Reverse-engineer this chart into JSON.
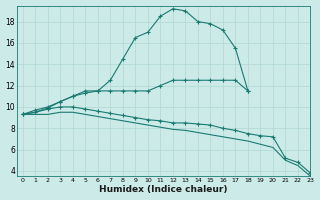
{
  "xlabel": "Humidex (Indice chaleur)",
  "ylabel": "",
  "background_color": "#cceae7",
  "line_color": "#1a7a72",
  "grid_color": "#b0d8d4",
  "xlim": [
    -0.5,
    23
  ],
  "ylim": [
    3.5,
    19.5
  ],
  "xticks": [
    0,
    1,
    2,
    3,
    4,
    5,
    6,
    7,
    8,
    9,
    10,
    11,
    12,
    13,
    14,
    15,
    16,
    17,
    18,
    19,
    20,
    21,
    22,
    23
  ],
  "yticks": [
    4,
    6,
    8,
    10,
    12,
    14,
    16,
    18
  ],
  "lines": [
    {
      "x": [
        0,
        1,
        2,
        3,
        4,
        5,
        6,
        7,
        8,
        9,
        10,
        11,
        12,
        13,
        14,
        15,
        16,
        17,
        18
      ],
      "y": [
        9.3,
        9.7,
        10.0,
        10.5,
        11.0,
        11.5,
        11.5,
        12.5,
        14.5,
        16.5,
        17.0,
        18.5,
        19.2,
        19.0,
        18.0,
        17.8,
        17.2,
        15.5,
        11.5
      ],
      "marker": true,
      "markersize": 2.5
    },
    {
      "x": [
        0,
        1,
        2,
        3,
        4,
        5,
        6,
        7,
        8,
        9,
        10,
        11,
        12,
        13,
        14,
        15,
        16,
        17,
        18
      ],
      "y": [
        9.3,
        9.5,
        9.9,
        10.5,
        11.0,
        11.3,
        11.5,
        11.5,
        11.5,
        11.5,
        11.5,
        12.0,
        12.5,
        12.5,
        12.5,
        12.5,
        12.5,
        12.5,
        11.5
      ],
      "marker": true,
      "markersize": 2.5
    },
    {
      "x": [
        0,
        1,
        2,
        3,
        4,
        5,
        6,
        7,
        8,
        9,
        10,
        11,
        12,
        13,
        14,
        15,
        16,
        17,
        18,
        19,
        20,
        21,
        22,
        23
      ],
      "y": [
        9.3,
        9.5,
        9.8,
        10.0,
        10.0,
        9.8,
        9.6,
        9.4,
        9.2,
        9.0,
        8.8,
        8.7,
        8.5,
        8.5,
        8.4,
        8.3,
        8.0,
        7.8,
        7.5,
        7.3,
        7.2,
        5.2,
        4.8,
        3.8
      ],
      "marker": true,
      "markersize": 2.5
    },
    {
      "x": [
        0,
        1,
        2,
        3,
        4,
        5,
        6,
        7,
        8,
        9,
        10,
        11,
        12,
        13,
        14,
        15,
        16,
        17,
        18,
        19,
        20,
        21,
        22,
        23
      ],
      "y": [
        9.3,
        9.3,
        9.3,
        9.5,
        9.5,
        9.3,
        9.1,
        8.9,
        8.7,
        8.5,
        8.3,
        8.1,
        7.9,
        7.8,
        7.6,
        7.4,
        7.2,
        7.0,
        6.8,
        6.5,
        6.2,
        5.0,
        4.5,
        3.5
      ],
      "marker": false,
      "markersize": 0
    }
  ]
}
